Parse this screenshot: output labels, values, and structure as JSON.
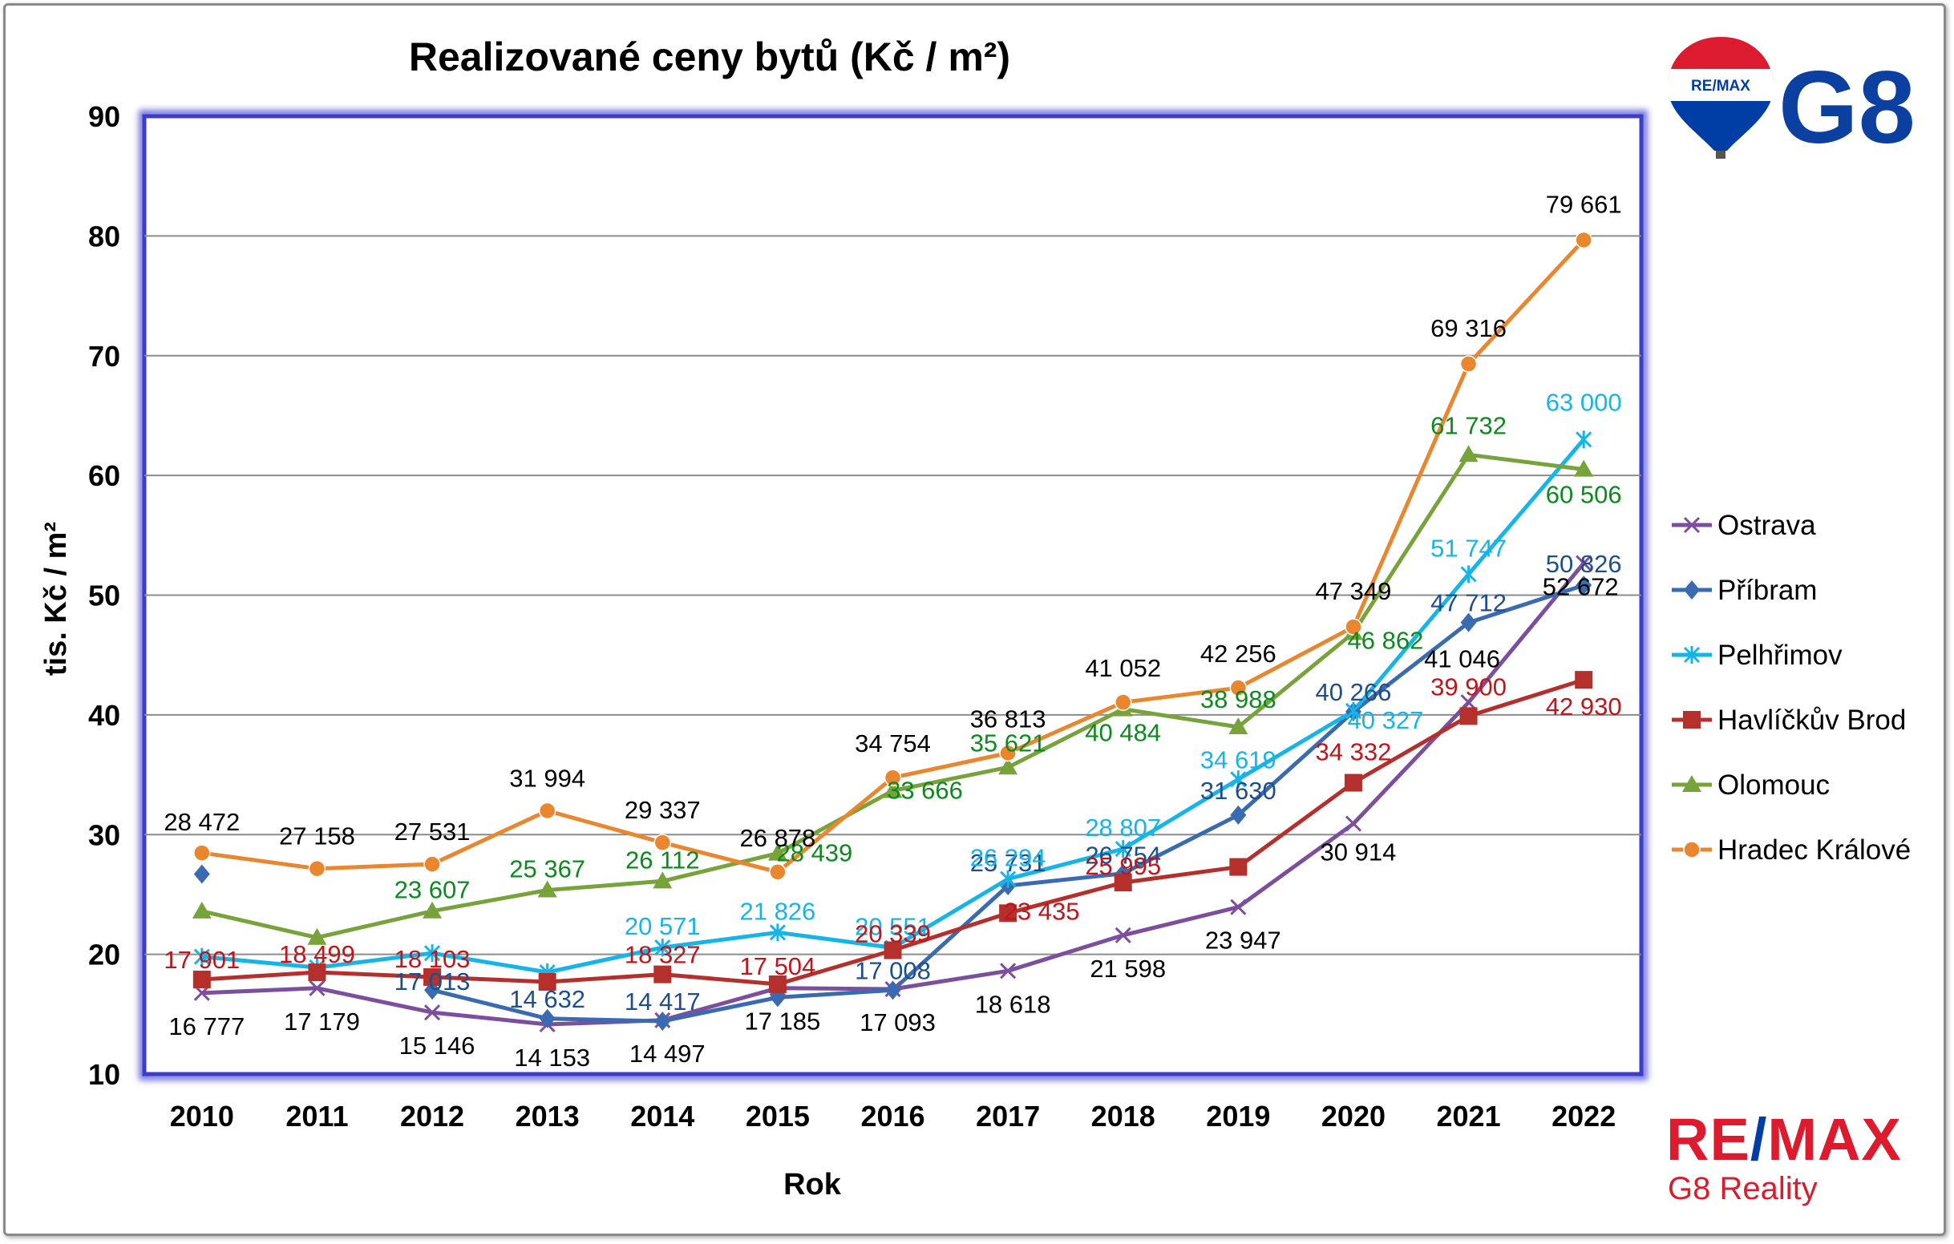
{
  "chart_data": {
    "type": "line",
    "title": "Realizované ceny bytů (Kč / m²)",
    "xlabel": "Rok",
    "ylabel": "tis. Kč / m²",
    "ylim": [
      10,
      90
    ],
    "yticks": [
      "10",
      "20",
      "30",
      "40",
      "50",
      "60",
      "70",
      "80",
      "90"
    ],
    "categories": [
      "2010",
      "2011",
      "2012",
      "2013",
      "2014",
      "2015",
      "2016",
      "2017",
      "2018",
      "2019",
      "2020",
      "2021",
      "2022"
    ],
    "grid": true,
    "legend_position": "right",
    "series": [
      {
        "name": "Ostrava",
        "color": "#7b4f9e",
        "marker": "x",
        "values": [
          16777,
          17179,
          15146,
          14153,
          14497,
          17185,
          17093,
          18618,
          21598,
          23947,
          30914,
          41046,
          52672
        ],
        "labels": [
          "16 777",
          "17 179",
          "15 146",
          "14 153",
          "14 497",
          "17 185",
          "17 093",
          "18 618",
          "21 598",
          "23 947",
          "30 914",
          "41 046",
          "52 672"
        ],
        "label_color": "#000000"
      },
      {
        "name": "Příbram",
        "color": "#3a6bb0",
        "marker": "diamond",
        "values": [
          null,
          null,
          17013,
          14632,
          14417,
          16400,
          17008,
          25731,
          26754,
          31630,
          40266,
          47712,
          50826
        ],
        "labels": [
          "",
          "",
          "17 013",
          "14 632",
          "14 417",
          "",
          "17 008",
          "25 731",
          "26 754",
          "31 630",
          "40 266",
          "47 712",
          "50 826"
        ],
        "label_color": "#1f4e8c",
        "extra_point": {
          "category": "2010",
          "value": 26700
        }
      },
      {
        "name": "Pelhřimov",
        "color": "#15b5ea",
        "marker": "star",
        "values": [
          19800,
          18900,
          20100,
          18500,
          20571,
          21826,
          20551,
          26294,
          28807,
          34619,
          40327,
          51747,
          63000
        ],
        "labels": [
          "",
          "",
          "",
          "",
          "20 571",
          "21 826",
          "20 551",
          "26 294",
          "28 807",
          "34 619",
          "40 327",
          "51 747",
          "63 000"
        ],
        "label_color": "#15b5ea"
      },
      {
        "name": "Havlíčkův Brod",
        "color": "#b5302c",
        "marker": "square",
        "values": [
          17901,
          18499,
          18103,
          17700,
          18327,
          17504,
          20339,
          23435,
          25995,
          27300,
          34332,
          39900,
          42930
        ],
        "labels": [
          "17 901",
          "18 499",
          "18 103",
          "",
          "18 327",
          "17 504",
          "20 339",
          "23 435",
          "25 995",
          "",
          "34 332",
          "39 900",
          "42 930"
        ],
        "label_color": "#c0151b"
      },
      {
        "name": "Olomouc",
        "color": "#77a33a",
        "marker": "triangle",
        "values": [
          23600,
          21400,
          23607,
          25367,
          26112,
          28439,
          33666,
          35621,
          40484,
          38988,
          46862,
          61732,
          60506
        ],
        "labels": [
          "",
          "",
          "23 607",
          "25 367",
          "26 112",
          "28 439",
          "33 666",
          "35 621",
          "40 484",
          "38 988",
          "46 862",
          "61 732",
          "60 506"
        ],
        "label_color": "#0d8a1f"
      },
      {
        "name": "Hradec Králové",
        "color": "#ea862e",
        "marker": "circle",
        "values": [
          28472,
          27158,
          27531,
          31994,
          29337,
          26878,
          34754,
          36813,
          41052,
          42256,
          47349,
          69316,
          79661
        ],
        "labels": [
          "28 472",
          "27 158",
          "27 531",
          "31 994",
          "29 337",
          "26 878",
          "34 754",
          "36 813",
          "41 052",
          "42 256",
          "47 349",
          "69 316",
          "79 661"
        ],
        "label_color": "#000000"
      }
    ]
  },
  "logos": {
    "top": {
      "balloon_text": "RE/MAX",
      "brand": "G8"
    },
    "bottom": {
      "remax_re": "RE",
      "remax_slash": "/",
      "remax_max": "MAX",
      "tagline": "G8 Reality"
    }
  },
  "colors": {
    "remax_red": "#dc1c2e",
    "remax_blue": "#003da5",
    "plot_border": "#3c3cc8"
  }
}
